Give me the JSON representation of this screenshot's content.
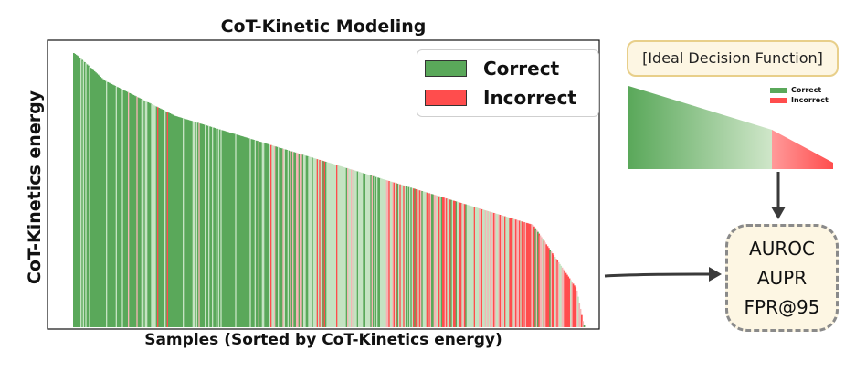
{
  "chart_data": {
    "type": "bar",
    "title": "CoT-Kinetic Modeling",
    "xlabel": "Samples (Sorted by CoT-Kinetics energy)",
    "ylabel": "CoT-Kinetics energy",
    "x_ticks": "none",
    "y_ticks": "none",
    "grid": false,
    "legend_position": "top-right",
    "series": [
      {
        "name": "Correct",
        "color": "#5aa85a"
      },
      {
        "name": "Incorrect",
        "color": "#ff4d4d"
      }
    ],
    "description": "Bars sorted by descending energy; high-energy samples are mostly Correct, low-energy samples mostly Incorrect"
  },
  "ideal": {
    "title": "[Ideal Decision Function]",
    "legend": {
      "correct": "Correct",
      "incorrect": "Incorrect"
    },
    "correct_color": "#5aa85a",
    "incorrect_color": "#ff5a5a"
  },
  "metrics": {
    "items": [
      "AUROC",
      "AUPR",
      "FPR@95"
    ]
  },
  "colors": {
    "correct": "#5aa85a",
    "correct_faded": "#c5e3c2",
    "incorrect": "#ff4d4d",
    "incorrect_faded": "#f5b5b5",
    "arrow": "#3a3a3a"
  }
}
